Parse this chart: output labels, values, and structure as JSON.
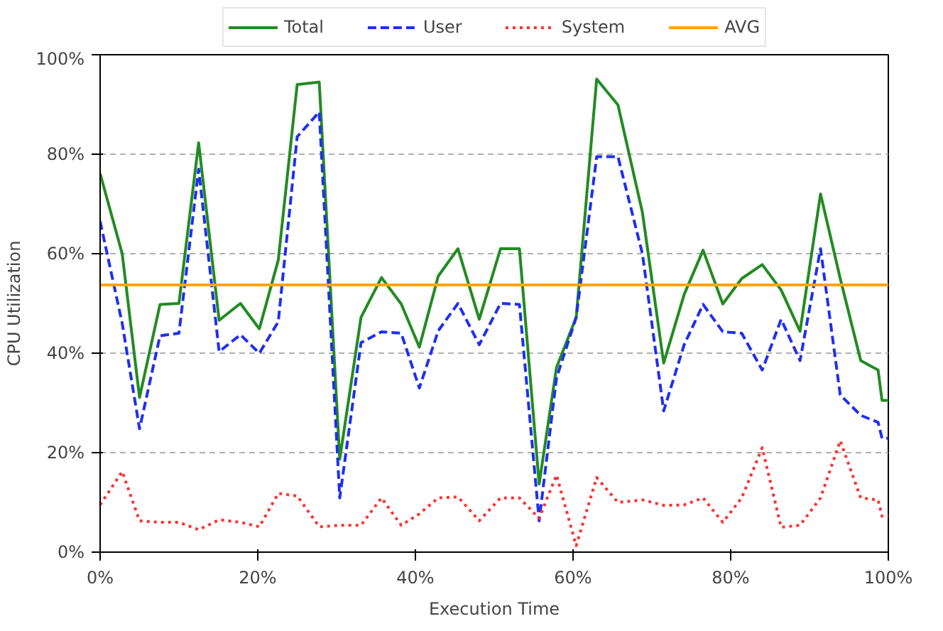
{
  "chart_data": {
    "type": "line",
    "xlabel": "Execution Time",
    "ylabel": "CPU Utilization",
    "x": [
      0,
      2.8,
      5,
      7.6,
      10,
      12.5,
      15.1,
      17.8,
      20.2,
      22.6,
      25,
      27.8,
      30.4,
      33.1,
      35.7,
      38.2,
      40.5,
      42.9,
      45.4,
      48.1,
      50.8,
      53.2,
      55.7,
      57.9,
      60.4,
      63,
      65.7,
      68.8,
      71.5,
      74.1,
      76.5,
      79,
      81.4,
      84,
      86.4,
      88.8,
      91.4,
      93.9,
      96.5,
      98.7,
      99.2,
      100
    ],
    "series": [
      {
        "name": "Total",
        "color": "#228b22",
        "line_style": "solid",
        "values": [
          76.1,
          60,
          31.1,
          49.8,
          50,
          82.3,
          46.6,
          50,
          44.9,
          58.7,
          94,
          94.5,
          18.7,
          47.2,
          55.2,
          49.9,
          41.2,
          55.5,
          61,
          46.8,
          61,
          61,
          13.7,
          37.1,
          47.2,
          95.1,
          89.9,
          68.3,
          38,
          51.8,
          60.7,
          49.9,
          55,
          57.8,
          52.7,
          44.4,
          72,
          55,
          38.5,
          36.6,
          30.5,
          30.5
        ]
      },
      {
        "name": "User",
        "color": "#1f2ff0",
        "line_style": "dashed",
        "values": [
          66.5,
          46,
          24.8,
          43.5,
          44,
          77,
          40.3,
          43.7,
          40,
          46.3,
          83.5,
          88.5,
          10.9,
          42.1,
          44.3,
          44,
          33,
          44.5,
          50,
          41.7,
          50,
          49.8,
          6.3,
          35,
          47.2,
          79.5,
          79.5,
          60,
          28.4,
          41.7,
          49.8,
          44.3,
          44,
          36.6,
          46.8,
          38.5,
          61,
          31.6,
          27.5,
          26.1,
          22.9,
          22.9
        ]
      },
      {
        "name": "System",
        "color": "#ff3030",
        "line_style": "dotted",
        "values": [
          9.5,
          16.2,
          6.3,
          6,
          6,
          4.5,
          6.5,
          6,
          5.1,
          11.8,
          11.3,
          5.1,
          5.4,
          5.4,
          10.9,
          5.4,
          7.7,
          10.9,
          11.1,
          6.3,
          10.9,
          10.9,
          6.8,
          15.5,
          1.3,
          15,
          10,
          10.5,
          9.4,
          9.5,
          10.9,
          6,
          10.9,
          21,
          5,
          5.4,
          10.9,
          22.4,
          10.9,
          10.5,
          7.2,
          7.2
        ]
      },
      {
        "name": "AVG",
        "color": "#ffa500",
        "line_style": "solid",
        "x": [
          0,
          100
        ],
        "values": [
          53.7,
          53.7
        ]
      }
    ],
    "xlim": [
      0,
      100
    ],
    "ylim": [
      0,
      100
    ],
    "xticks": [
      {
        "value": 0,
        "label": "0%"
      },
      {
        "value": 20,
        "label": "20%"
      },
      {
        "value": 40,
        "label": "40%"
      },
      {
        "value": 60,
        "label": "60%"
      },
      {
        "value": 80,
        "label": "80%"
      },
      {
        "value": 100,
        "label": "100%"
      }
    ],
    "yticks": [
      {
        "value": 0,
        "label": "0%"
      },
      {
        "value": 20,
        "label": "20%"
      },
      {
        "value": 40,
        "label": "40%"
      },
      {
        "value": 60,
        "label": "60%"
      },
      {
        "value": 80,
        "label": "80%"
      },
      {
        "value": 100,
        "label": "100%"
      }
    ],
    "grid": "y",
    "legend": "top",
    "marker": "none"
  }
}
